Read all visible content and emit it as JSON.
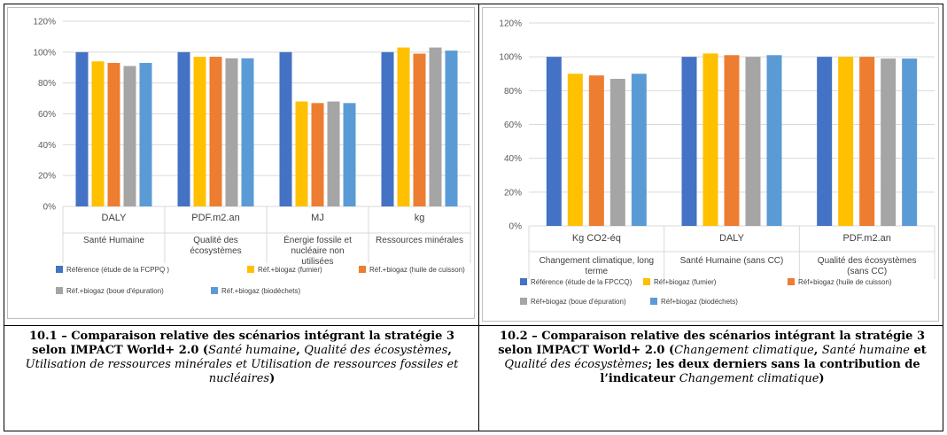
{
  "chart_data": [
    {
      "type": "bar",
      "ylim": [
        0,
        120
      ],
      "yticks": [
        "0%",
        "20%",
        "40%",
        "60%",
        "80%",
        "100%",
        "120%"
      ],
      "categories": [
        {
          "unit": "DALY",
          "name": "Santé Humaine"
        },
        {
          "unit": "PDF.m2.an",
          "name": "Qualité des écosystèmes"
        },
        {
          "unit": "MJ",
          "name": "Énergie fossile et nucléaire non utilisées"
        },
        {
          "unit": "kg",
          "name": "Ressources minérales"
        }
      ],
      "series": [
        {
          "name": "Référence (étude de la FCPPQ )",
          "color": "#4472c4",
          "values": [
            100,
            100,
            100,
            100
          ]
        },
        {
          "name": "Réf.+biogaz (fumier)",
          "color": "#ffc000",
          "values": [
            94,
            97,
            68,
            103
          ]
        },
        {
          "name": "Réf.+biogaz (huile de cuisson)",
          "color": "#ed7d31",
          "values": [
            93,
            97,
            67,
            99
          ]
        },
        {
          "name": "Réf.+biogaz (boue d'épuration)",
          "color": "#a5a5a5",
          "values": [
            91,
            96,
            68,
            103
          ]
        },
        {
          "name": "Réf.+biogaz (biodéchets)",
          "color": "#5b9bd5",
          "values": [
            93,
            96,
            67,
            101
          ]
        }
      ],
      "grid": true,
      "legend_position": "bottom"
    },
    {
      "type": "bar",
      "ylim": [
        0,
        120
      ],
      "yticks": [
        "0%",
        "20%",
        "40%",
        "60%",
        "80%",
        "100%",
        "120%"
      ],
      "categories": [
        {
          "unit": "Kg CO2-éq",
          "name": "Changement climatique, long terme"
        },
        {
          "unit": "DALY",
          "name": "Santé Humaine (sans CC)"
        },
        {
          "unit": "PDF.m2.an",
          "name": "Qualité des écosystèmes (sans CC)"
        }
      ],
      "series": [
        {
          "name": "Référence (étude de la FPCCQ)",
          "color": "#4472c4",
          "values": [
            100,
            100,
            100
          ]
        },
        {
          "name": "Réf+biogaz (fumier)",
          "color": "#ffc000",
          "values": [
            90,
            102,
            100
          ]
        },
        {
          "name": "Réf+biogaz (huile de cuisson)",
          "color": "#ed7d31",
          "values": [
            89,
            101,
            100
          ]
        },
        {
          "name": "Réf+biogaz (boue d'épuration)",
          "color": "#a5a5a5",
          "values": [
            87,
            100,
            99
          ]
        },
        {
          "name": "Réf+biogaz (biodéchets)",
          "color": "#5b9bd5",
          "values": [
            90,
            101,
            99
          ]
        }
      ],
      "grid": true,
      "legend_position": "bottom"
    }
  ],
  "captions": [
    {
      "parts": [
        {
          "text": "10.1 – Comparaison relative des scénarios intégrant la stratégie 3 selon IMPACT World+ 2.0 (",
          "italic": false
        },
        {
          "text": "Santé humaine",
          "italic": true
        },
        {
          "text": ", ",
          "italic": false
        },
        {
          "text": "Qualité des écosystèmes",
          "italic": true
        },
        {
          "text": ", ",
          "italic": false
        },
        {
          "text": "Utilisation de ressources minérales et Utilisation de ressources fossiles et nucléaires",
          "italic": true
        },
        {
          "text": ")",
          "italic": false
        }
      ]
    },
    {
      "parts": [
        {
          "text": "10.2 – Comparaison relative des scénarios intégrant la stratégie 3 selon IMPACT World+ 2.0 (",
          "italic": false
        },
        {
          "text": "Changement climatique",
          "italic": true
        },
        {
          "text": ", ",
          "italic": false
        },
        {
          "text": "Santé humaine",
          "italic": true
        },
        {
          "text": " et ",
          "italic": false
        },
        {
          "text": "Qualité des écosystèmes",
          "italic": true
        },
        {
          "text": "; les deux derniers sans la contribution de l’indicateur ",
          "italic": false
        },
        {
          "text": "Changement climatique",
          "italic": true
        },
        {
          "text": ")",
          "italic": false
        }
      ]
    }
  ]
}
